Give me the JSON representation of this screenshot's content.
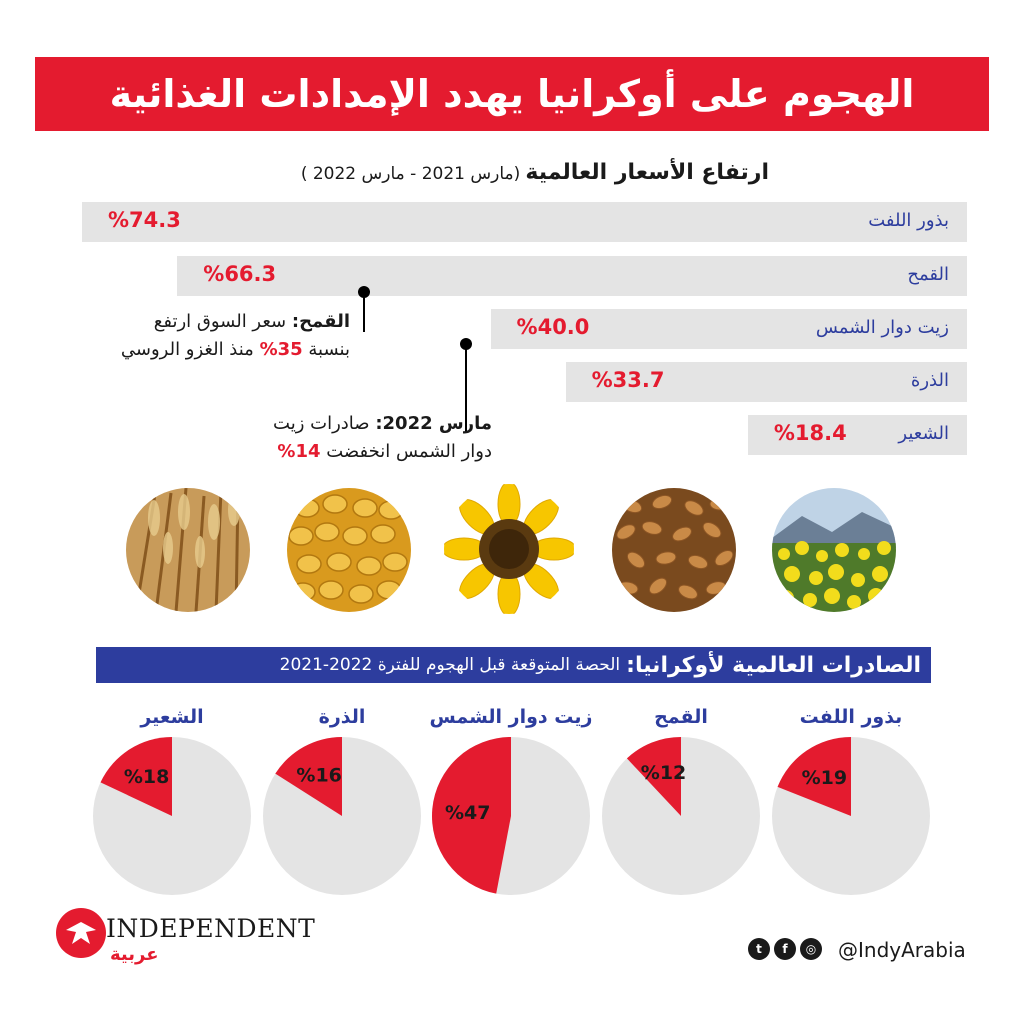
{
  "title": "الهجوم على أوكرانيا يهدد الإمدادات الغذائية",
  "prices": {
    "heading": "ارتفاع الأسعار العالمية",
    "range": "(مارس 2021 - مارس 2022 )"
  },
  "callouts": {
    "wheat": {
      "lead": "القمح:",
      "text1": "سعر السوق ارتفع",
      "text2a": "بنسبة",
      "pct": "35%",
      "text2b": "منذ الغزو الروسي"
    },
    "sunflower": {
      "lead": "مارس 2022:",
      "text1": "صادرات زيت",
      "text2": "دوار الشمس انخفضت",
      "pct": "14%"
    }
  },
  "exports": {
    "heading": "الصادرات العالمية لأوكرانيا:",
    "subheading": "الحصة المتوقعة قبل الهجوم للفترة 2022-2021"
  },
  "colors": {
    "red": "#e41b2f",
    "blue": "#2d3d9e",
    "grey": "#e4e4e4"
  },
  "images": [
    "barley-field",
    "corn-kernels",
    "sunflower",
    "wheat-grains",
    "rapeseed-flowers"
  ],
  "chart_data": [
    {
      "type": "bar",
      "orientation": "horizontal",
      "categories": [
        "بذور اللفت",
        "القمح",
        "زيت دوار الشمس",
        "الذرة",
        "الشعير"
      ],
      "values": [
        74.3,
        66.3,
        40.0,
        33.7,
        18.4
      ],
      "value_labels": [
        "%74.3",
        "%66.3",
        "%40.0",
        "%33.7",
        "%18.4"
      ]
    },
    {
      "type": "pie",
      "categories": [
        "بذور اللفت",
        "القمح",
        "زيت دوار الشمس",
        "الذرة",
        "الشعير"
      ],
      "values": [
        19,
        12,
        47,
        16,
        18
      ],
      "value_labels": [
        "%19",
        "%12",
        "%47",
        "%16",
        "%18"
      ]
    }
  ],
  "footer": {
    "brand": "INDEPENDENT",
    "brand_sub": "عربية",
    "handle": "@IndyArabia",
    "social_icons": [
      "instagram-icon",
      "facebook-icon",
      "twitter-icon"
    ]
  }
}
